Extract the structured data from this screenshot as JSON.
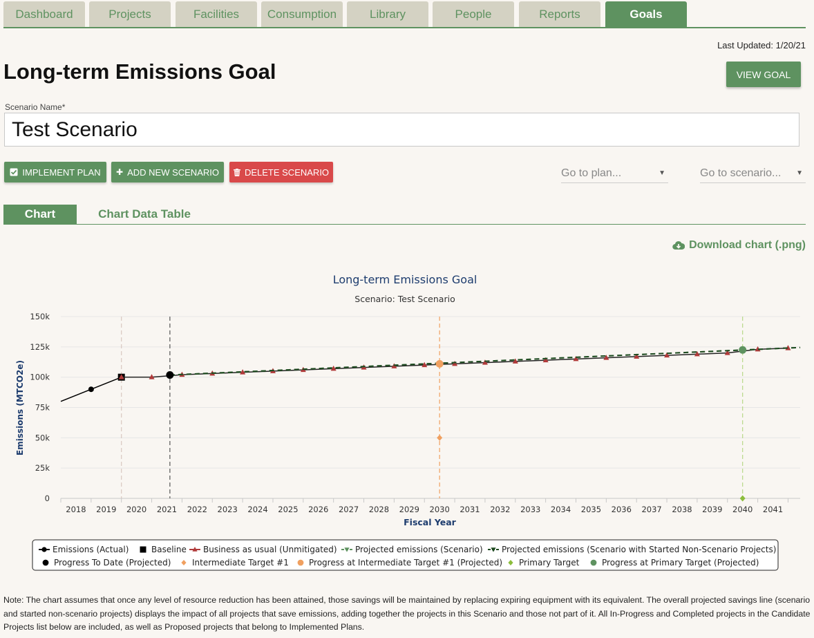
{
  "nav": {
    "tabs": [
      {
        "label": "Dashboard",
        "active": false
      },
      {
        "label": "Projects",
        "active": false
      },
      {
        "label": "Facilities",
        "active": false
      },
      {
        "label": "Consumption",
        "active": false
      },
      {
        "label": "Library",
        "active": false
      },
      {
        "label": "People",
        "active": false
      },
      {
        "label": "Reports",
        "active": false
      },
      {
        "label": "Goals",
        "active": true
      }
    ]
  },
  "last_updated": "Last Updated: 1/20/21",
  "page_title": "Long-term Emissions Goal",
  "view_goal_label": "VIEW GOAL",
  "scenario": {
    "label": "Scenario Name",
    "required_mark": "*",
    "value": "Test Scenario"
  },
  "actions": {
    "implement_plan": "IMPLEMENT PLAN",
    "add_scenario": "ADD NEW SCENARIO",
    "delete_scenario": "DELETE SCENARIO"
  },
  "selects": {
    "plan_placeholder": "Go to plan...",
    "scenario_placeholder": "Go to scenario..."
  },
  "subtabs": {
    "chart": "Chart",
    "table": "Chart Data Table"
  },
  "download_label": "Download chart (.png)",
  "icons": {
    "implement": "checkbox-icon",
    "add": "plus-icon",
    "delete": "trash-icon",
    "download": "cloud-download-icon",
    "dropdown": "caret-down-icon"
  },
  "colors": {
    "brand_green": "#5e9260",
    "danger_red": "#d9494a",
    "tab_inactive": "#d4d2c3",
    "bau_red": "#b03a3a",
    "intermediate_orange": "#f0a060",
    "primary_lime": "#8cbd3c",
    "primary_progress": "#5e9260",
    "title_blue": "#1d3c6e"
  },
  "chart_data": {
    "type": "line",
    "title": "Long-term Emissions Goal",
    "subtitle": "Scenario: Test Scenario",
    "xlabel": "Fiscal Year",
    "ylabel": "Emissions (MTCO2e)",
    "x_ticks": [
      "2018",
      "2019",
      "2020",
      "2021",
      "2022",
      "2023",
      "2024",
      "2025",
      "2026",
      "2027",
      "2028",
      "2029",
      "2030",
      "2031",
      "2032",
      "2033",
      "2034",
      "2035",
      "2036",
      "2037",
      "2038",
      "2039",
      "2040",
      "2041"
    ],
    "y_ticks": [
      "0",
      "25k",
      "50k",
      "75k",
      "100k",
      "125k",
      "150k"
    ],
    "xlim": [
      2017.5,
      2041.9
    ],
    "ylim": [
      0,
      150000
    ],
    "grid": true,
    "legend_position": "bottom",
    "vertical_lines": [
      {
        "x": 2019.5,
        "color": "#d8c8c0"
      },
      {
        "x": 2021.1,
        "color": "#555555"
      },
      {
        "x": 2030.0,
        "color": "#f0a060"
      },
      {
        "x": 2040.0,
        "color": "#b8d888"
      }
    ],
    "series": [
      {
        "name": "Emissions (Actual)",
        "marker": "circle",
        "color": "#000000",
        "line": "solid",
        "x": [
          2017.5,
          2018.5,
          2019.5
        ],
        "y": [
          80000,
          90000,
          100000
        ]
      },
      {
        "name": "Baseline",
        "marker": "square",
        "color": "#000000",
        "line": "none",
        "x": [
          2019.5
        ],
        "y": [
          100000
        ]
      },
      {
        "name": "Business as usual (Unmitigated)",
        "marker": "triangle-up",
        "color": "#b03a3a",
        "line": "solid",
        "x": [
          2019.5,
          2020.5,
          2021.5,
          2022.5,
          2023.5,
          2024.5,
          2025.5,
          2026.5,
          2027.5,
          2028.5,
          2029.5,
          2030.5,
          2031.5,
          2032.5,
          2033.5,
          2034.5,
          2035.5,
          2036.5,
          2037.5,
          2038.5,
          2039.5,
          2040.5,
          2041.5
        ],
        "y": [
          100000,
          100000,
          102000,
          103000,
          104000,
          105000,
          106000,
          107000,
          108000,
          109000,
          110000,
          111000,
          112000,
          113000,
          114000,
          115000,
          116000,
          117000,
          118000,
          119000,
          120000,
          123000,
          124000
        ]
      },
      {
        "name": "Projected emissions (Scenario)",
        "marker": "triangle-down",
        "color": "#5e9260",
        "line": "dashed",
        "x": [
          2021.1,
          2041.9
        ],
        "y": [
          101800,
          124500
        ]
      },
      {
        "name": "Projected emissions (Scenario with Started Non-Scenario Projects)",
        "marker": "triangle-down",
        "color": "#1e4a20",
        "line": "dashed",
        "x": [
          2021.1,
          2041.9
        ],
        "y": [
          101800,
          124500
        ]
      },
      {
        "name": "Progress To Date (Projected)",
        "marker": "circle-lg",
        "color": "#000000",
        "line": "none",
        "x": [
          2021.1
        ],
        "y": [
          101800
        ]
      },
      {
        "name": "Intermediate Target #1",
        "marker": "diamond",
        "color": "#f0a060",
        "line": "none",
        "x": [
          2030.0
        ],
        "y": [
          50000
        ]
      },
      {
        "name": "Progress at Intermediate Target #1 (Projected)",
        "marker": "circle-lg",
        "color": "#f0a060",
        "line": "none",
        "x": [
          2030.0
        ],
        "y": [
          111000
        ]
      },
      {
        "name": "Primary Target",
        "marker": "diamond",
        "color": "#8cbd3c",
        "line": "none",
        "x": [
          2040.0
        ],
        "y": [
          0
        ]
      },
      {
        "name": "Progress at Primary Target (Projected)",
        "marker": "circle-lg",
        "color": "#5e9260",
        "line": "none",
        "x": [
          2040.0
        ],
        "y": [
          122500
        ]
      }
    ]
  },
  "note": "Note: The chart assumes that once any level of resource reduction has been attained, those savings will be maintained by replacing expiring equipment with its equivalent. The overall projected savings line (scenario and started non-scenario projects) displays the impact of all projects that save emissions, adding together the projects in this Scenario and those not part of it. All In-Progress and Completed projects in the Candidate Projects list below are included, as well as Proposed projects that belong to Implemented Plans."
}
